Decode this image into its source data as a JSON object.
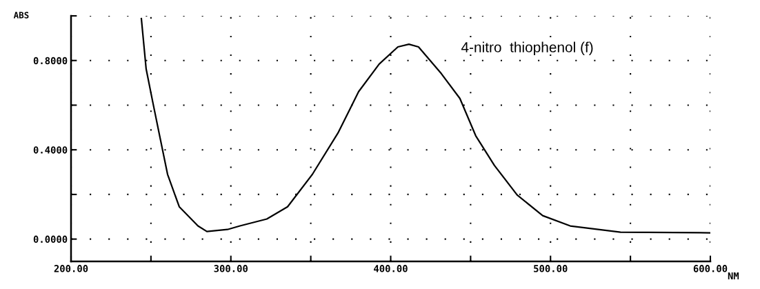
{
  "chart_data": {
    "type": "line",
    "xlabel": "NM",
    "ylabel": "ABS",
    "annotations": [
      "4-nitro  thiophenol (f)"
    ],
    "x": [
      244.0,
      247.0,
      251.3,
      255.7,
      260.4,
      267.7,
      279.4,
      285.0,
      297.9,
      305.7,
      322.5,
      335.5,
      351.0,
      367.0,
      379.9,
      392.8,
      404.5,
      411.4,
      417.4,
      431.7,
      443.3,
      453.2,
      464.9,
      479.1,
      495.1,
      512.3,
      543.8,
      600.0
    ],
    "series": [
      {
        "color": "#000000",
        "values": [
          0.988,
          0.762,
          0.608,
          0.454,
          0.29,
          0.145,
          0.059,
          0.034,
          0.043,
          0.059,
          0.09,
          0.145,
          0.29,
          0.475,
          0.66,
          0.784,
          0.861,
          0.873,
          0.861,
          0.741,
          0.63,
          0.463,
          0.33,
          0.198,
          0.105,
          0.059,
          0.031,
          0.028
        ]
      }
    ],
    "xlim": [
      200,
      600
    ],
    "ylim": [
      -0.1,
      1.0
    ],
    "xticks": [
      {
        "value": 200,
        "label": "200.00"
      },
      {
        "value": 250,
        "label": null
      },
      {
        "value": 300,
        "label": "300.00"
      },
      {
        "value": 350,
        "label": null
      },
      {
        "value": 400,
        "label": "400.00"
      },
      {
        "value": 450,
        "label": null
      },
      {
        "value": 500,
        "label": "500.00"
      },
      {
        "value": 550,
        "label": null
      },
      {
        "value": 600,
        "label": "600.00"
      }
    ],
    "yticks": [
      {
        "value": 0,
        "label": "0.0000"
      },
      {
        "value": 0.2,
        "label": null
      },
      {
        "value": 0.4,
        "label": "0.4000"
      },
      {
        "value": 0.6,
        "label": null
      },
      {
        "value": 0.8,
        "label": "0.8000"
      },
      {
        "value": 1.0,
        "label": null
      }
    ],
    "grid": true,
    "line_style": "solid",
    "marker": "none"
  }
}
